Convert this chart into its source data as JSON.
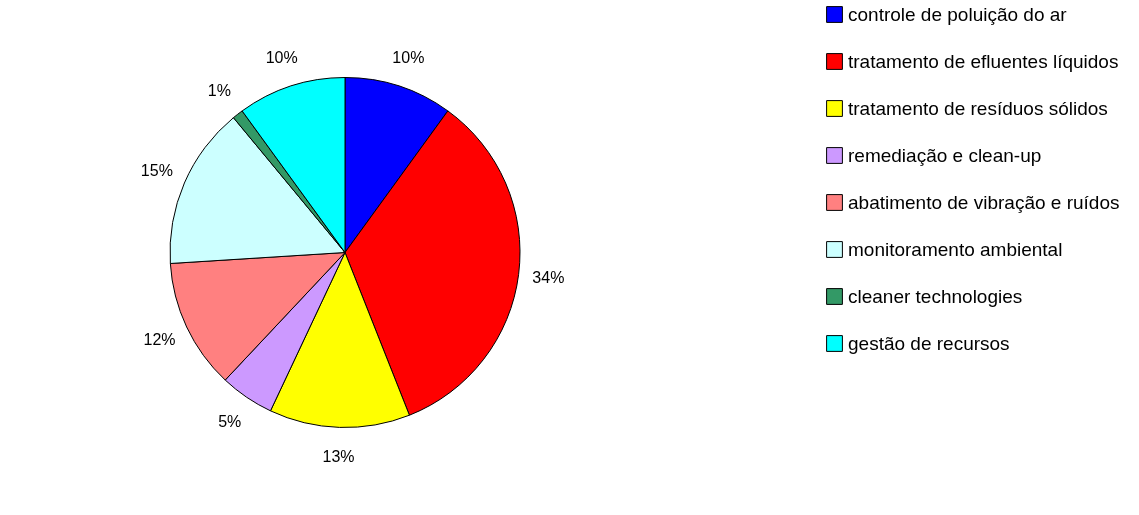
{
  "chart_data": {
    "type": "pie",
    "categories": [
      "controle de poluição do ar",
      "tratamento de efluentes líquidos",
      "tratamento de resíduos sólidos",
      "remediação e clean-up",
      "abatimento de vibração e ruídos",
      "monitoramento ambiental",
      "cleaner technologies",
      "gestão de recursos"
    ],
    "values": [
      10,
      34,
      13,
      5,
      12,
      15,
      1,
      10
    ],
    "value_labels": [
      "10%",
      "34%",
      "13%",
      "5%",
      "12%",
      "15%",
      "1%",
      "10%"
    ],
    "colors": [
      "#0000ff",
      "#ff0000",
      "#ffff00",
      "#cc99ff",
      "#ff8080",
      "#ccffff",
      "#339966",
      "#00ffff"
    ],
    "legend": "right"
  }
}
